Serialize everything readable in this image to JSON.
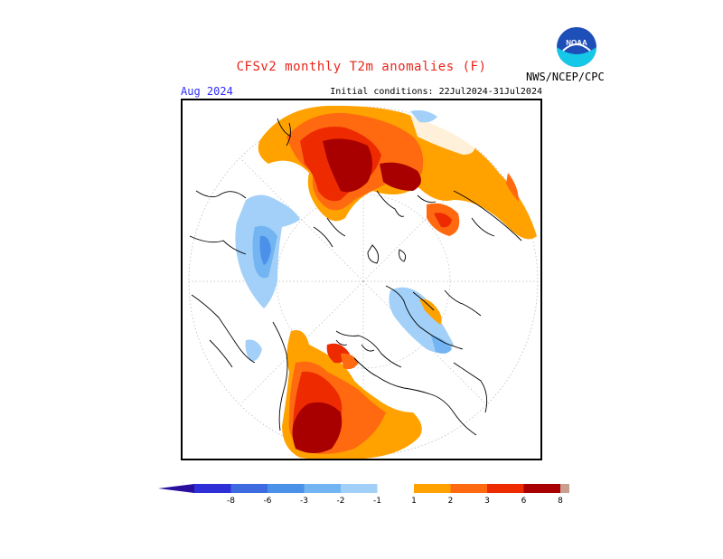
{
  "header": {
    "title": "CFSv2 monthly T2m anomalies (F)",
    "organization": "NWS/NCEP/CPC",
    "month": "Aug 2024",
    "initial_conditions": "Initial conditions: 22Jul2024-31Jul2024"
  },
  "logo": {
    "label": "NOAA",
    "icon": "noaa-logo-icon"
  },
  "colors": {
    "title": "#e8261b",
    "month": "#2c2cff",
    "map_border": "#000000"
  },
  "colorbar": {
    "left_arrow_color": "#2a0f9e",
    "right_arrow_color": "#7a4a3a",
    "bins": [
      {
        "color": "#2f2fd8"
      },
      {
        "color": "#3f6be0"
      },
      {
        "color": "#4b91ea"
      },
      {
        "color": "#73b4f2"
      },
      {
        "color": "#a2d0f8"
      },
      {
        "color": "#ffffff"
      },
      {
        "color": "#ffa200"
      },
      {
        "color": "#ff6a10"
      },
      {
        "color": "#ee2b00"
      },
      {
        "color": "#a80000"
      },
      {
        "color": "#c9a090"
      }
    ],
    "tick_labels": [
      "-8",
      "-6",
      "-3",
      "-2",
      "-1",
      "1",
      "2",
      "3",
      "6",
      "8"
    ]
  }
}
